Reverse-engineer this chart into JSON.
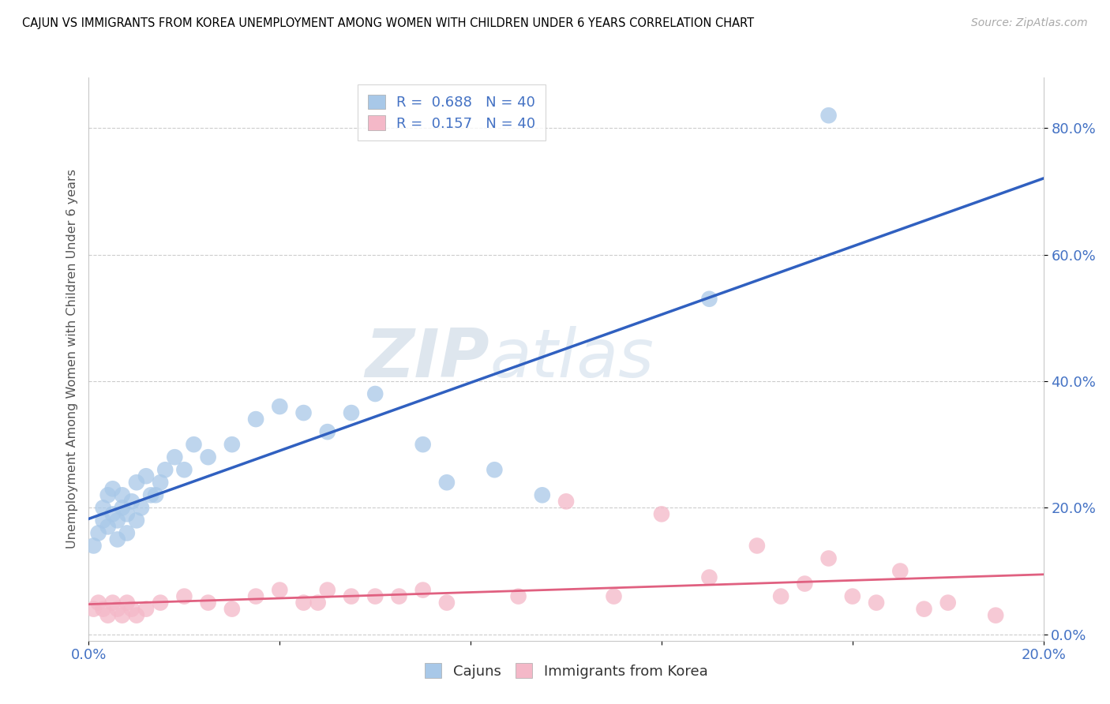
{
  "title": "CAJUN VS IMMIGRANTS FROM KOREA UNEMPLOYMENT AMONG WOMEN WITH CHILDREN UNDER 6 YEARS CORRELATION CHART",
  "source": "Source: ZipAtlas.com",
  "ylabel": "Unemployment Among Women with Children Under 6 years",
  "xlim": [
    0.0,
    0.2
  ],
  "ylim": [
    -0.01,
    0.88
  ],
  "ytick_labels": [
    "0.0%",
    "20.0%",
    "40.0%",
    "60.0%",
    "80.0%"
  ],
  "ytick_values": [
    0.0,
    0.2,
    0.4,
    0.6,
    0.8
  ],
  "legend_entry1": "R =  0.688   N = 40",
  "legend_entry2": "R =  0.157   N = 40",
  "legend_label1": "Cajuns",
  "legend_label2": "Immigrants from Korea",
  "color_cajun": "#a8c8e8",
  "color_korea": "#f4b8c8",
  "line_color_cajun": "#3060c0",
  "line_color_korea": "#e06080",
  "cajun_x": [
    0.001,
    0.002,
    0.003,
    0.003,
    0.004,
    0.004,
    0.005,
    0.005,
    0.006,
    0.006,
    0.007,
    0.007,
    0.008,
    0.008,
    0.009,
    0.01,
    0.01,
    0.011,
    0.012,
    0.013,
    0.014,
    0.015,
    0.016,
    0.018,
    0.02,
    0.022,
    0.025,
    0.03,
    0.035,
    0.04,
    0.045,
    0.05,
    0.055,
    0.06,
    0.07,
    0.075,
    0.085,
    0.095,
    0.13,
    0.155
  ],
  "cajun_y": [
    0.14,
    0.16,
    0.18,
    0.2,
    0.17,
    0.22,
    0.19,
    0.23,
    0.15,
    0.18,
    0.2,
    0.22,
    0.16,
    0.19,
    0.21,
    0.18,
    0.24,
    0.2,
    0.25,
    0.22,
    0.22,
    0.24,
    0.26,
    0.28,
    0.26,
    0.3,
    0.28,
    0.3,
    0.34,
    0.36,
    0.35,
    0.32,
    0.35,
    0.38,
    0.3,
    0.24,
    0.26,
    0.22,
    0.53,
    0.82
  ],
  "korea_x": [
    0.001,
    0.002,
    0.003,
    0.004,
    0.005,
    0.006,
    0.007,
    0.008,
    0.009,
    0.01,
    0.012,
    0.015,
    0.02,
    0.025,
    0.03,
    0.035,
    0.04,
    0.045,
    0.048,
    0.05,
    0.055,
    0.06,
    0.065,
    0.07,
    0.075,
    0.09,
    0.1,
    0.11,
    0.12,
    0.13,
    0.14,
    0.145,
    0.15,
    0.155,
    0.16,
    0.165,
    0.17,
    0.175,
    0.18,
    0.19
  ],
  "korea_y": [
    0.04,
    0.05,
    0.04,
    0.03,
    0.05,
    0.04,
    0.03,
    0.05,
    0.04,
    0.03,
    0.04,
    0.05,
    0.06,
    0.05,
    0.04,
    0.06,
    0.07,
    0.05,
    0.05,
    0.07,
    0.06,
    0.06,
    0.06,
    0.07,
    0.05,
    0.06,
    0.21,
    0.06,
    0.19,
    0.09,
    0.14,
    0.06,
    0.08,
    0.12,
    0.06,
    0.05,
    0.1,
    0.04,
    0.05,
    0.03
  ]
}
